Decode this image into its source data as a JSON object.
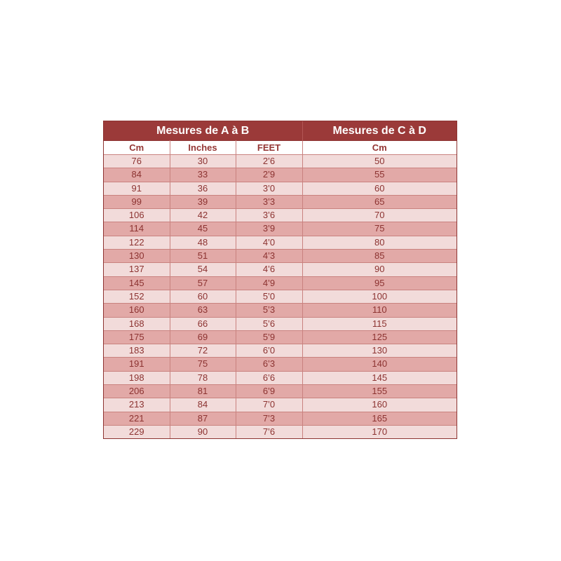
{
  "chart_data": {
    "type": "table",
    "header_groups": [
      {
        "label": "Mesures de A à B",
        "colspan": 3
      },
      {
        "label": "Mesures de C à D",
        "colspan": 1
      }
    ],
    "columns": [
      "Cm",
      "Inches",
      "FEET",
      "Cm"
    ],
    "rows": [
      [
        "76",
        "30",
        "2’6",
        "50"
      ],
      [
        "84",
        "33",
        "2’9",
        "55"
      ],
      [
        "91",
        "36",
        "3’0",
        "60"
      ],
      [
        "99",
        "39",
        "3’3",
        "65"
      ],
      [
        "106",
        "42",
        "3’6",
        "70"
      ],
      [
        "114",
        "45",
        "3’9",
        "75"
      ],
      [
        "122",
        "48",
        "4’0",
        "80"
      ],
      [
        "130",
        "51",
        "4’3",
        "85"
      ],
      [
        "137",
        "54",
        "4’6",
        "90"
      ],
      [
        "145",
        "57",
        "4’9",
        "95"
      ],
      [
        "152",
        "60",
        "5’0",
        "100"
      ],
      [
        "160",
        "63",
        "5’3",
        "110"
      ],
      [
        "168",
        "66",
        "5’6",
        "115"
      ],
      [
        "175",
        "69",
        "5’9",
        "125"
      ],
      [
        "183",
        "72",
        "6’0",
        "130"
      ],
      [
        "191",
        "75",
        "6’3",
        "140"
      ],
      [
        "198",
        "78",
        "6’6",
        "145"
      ],
      [
        "206",
        "81",
        "6’9",
        "155"
      ],
      [
        "213",
        "84",
        "7’0",
        "160"
      ],
      [
        "221",
        "87",
        "7’3",
        "165"
      ],
      [
        "229",
        "90",
        "7’6",
        "170"
      ]
    ],
    "layout_hints": {
      "zebra_striping": true,
      "first_data_row_shade": "light"
    }
  },
  "colors": {
    "page_bg": "#ffffff",
    "header_bg": "#9b3a39",
    "header_text": "#ffffff",
    "header_divider": "#b25654",
    "subheader_bg": "#ffffff",
    "subheader_text": "#943634",
    "row_light": "#f2dbda",
    "row_dark": "#e2a9a7",
    "cell_text": "#8c3331",
    "grid_line": "#c9827f",
    "outer_border": "#8e3432"
  }
}
